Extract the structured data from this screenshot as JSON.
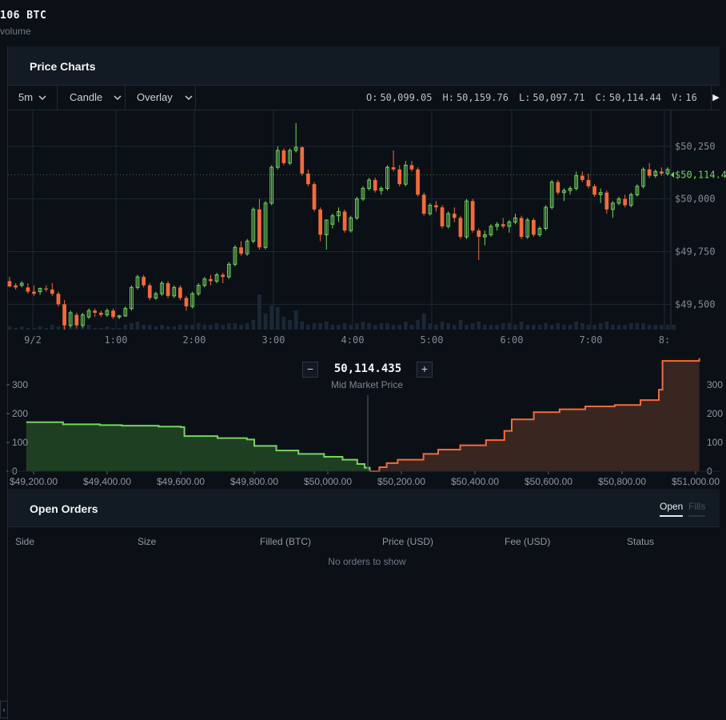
{
  "top": {
    "volume_text": "106  BTC",
    "volume_label": "volume"
  },
  "chart_panel": {
    "title": "Price Charts",
    "toolbar": {
      "interval": "5m",
      "chart_type": "Candle",
      "overlay": "Overlay",
      "ohlc": {
        "o_label": "O:",
        "o": "50,099.05",
        "h_label": "H:",
        "h": "50,159.76",
        "l_label": "L:",
        "l": "50,097.71",
        "c_label": "C:",
        "c": "50,114.44",
        "v_label": "V:",
        "v": "16"
      },
      "play_icon": "play-icon"
    }
  },
  "colors": {
    "up": "#72d55f",
    "down": "#f36a3d",
    "bid_fill": "#1f3f22",
    "ask_fill": "#3a2620",
    "bg": "#0b1016",
    "grid": "#1d2731"
  },
  "chart_data": [
    {
      "type": "candlestick",
      "interval": "5m",
      "x_tick_labels": [
        "9/2",
        "1:00",
        "2:00",
        "3:00",
        "4:00",
        "5:00",
        "6:00",
        "7:00",
        "8:"
      ],
      "y_tick_labels": [
        "$50,250",
        "$50,000",
        "$49,750",
        "$49,500"
      ],
      "ylim": [
        49380,
        50420
      ],
      "last_price_label": "$50,114.4",
      "last_price": 50114.44,
      "ohlc": [
        [
          49610,
          49630,
          49580,
          49585
        ],
        [
          49590,
          49600,
          49570,
          49580
        ],
        [
          49590,
          49610,
          49580,
          49600
        ],
        [
          49580,
          49600,
          49550,
          49560
        ],
        [
          49560,
          49590,
          49540,
          49550
        ],
        [
          49560,
          49580,
          49545,
          49575
        ],
        [
          49575,
          49590,
          49560,
          49570
        ],
        [
          49570,
          49600,
          49540,
          49550
        ],
        [
          49550,
          49560,
          49490,
          49500
        ],
        [
          49500,
          49520,
          49380,
          49400
        ],
        [
          49400,
          49470,
          49390,
          49460
        ],
        [
          49450,
          49460,
          49390,
          49400
        ],
        [
          49400,
          49460,
          49390,
          49450
        ],
        [
          49440,
          49480,
          49430,
          49470
        ],
        [
          49470,
          49480,
          49440,
          49460
        ],
        [
          49460,
          49470,
          49440,
          49450
        ],
        [
          49450,
          49480,
          49440,
          49470
        ],
        [
          49470,
          49480,
          49430,
          49440
        ],
        [
          49440,
          49450,
          49430,
          49445
        ],
        [
          49445,
          49490,
          49440,
          49480
        ],
        [
          49480,
          49590,
          49470,
          49580
        ],
        [
          49580,
          49640,
          49570,
          49630
        ],
        [
          49630,
          49640,
          49580,
          49590
        ],
        [
          49590,
          49600,
          49520,
          49530
        ],
        [
          49530,
          49560,
          49520,
          49550
        ],
        [
          49550,
          49610,
          49540,
          49600
        ],
        [
          49600,
          49610,
          49530,
          49540
        ],
        [
          49540,
          49590,
          49530,
          49580
        ],
        [
          49580,
          49590,
          49520,
          49530
        ],
        [
          49530,
          49540,
          49470,
          49490
        ],
        [
          49490,
          49560,
          49480,
          49550
        ],
        [
          49550,
          49600,
          49540,
          49590
        ],
        [
          49590,
          49630,
          49580,
          49620
        ],
        [
          49620,
          49640,
          49590,
          49610
        ],
        [
          49610,
          49650,
          49600,
          49640
        ],
        [
          49640,
          49650,
          49600,
          49630
        ],
        [
          49630,
          49700,
          49620,
          49690
        ],
        [
          49690,
          49780,
          49680,
          49770
        ],
        [
          49770,
          49800,
          49730,
          49740
        ],
        [
          49740,
          49810,
          49730,
          49800
        ],
        [
          49800,
          49960,
          49790,
          49950
        ],
        [
          49950,
          50000,
          49760,
          49770
        ],
        [
          49770,
          49990,
          49760,
          49980
        ],
        [
          49980,
          50160,
          49970,
          50150
        ],
        [
          50150,
          50250,
          50140,
          50230
        ],
        [
          50230,
          50240,
          50160,
          50170
        ],
        [
          50170,
          50240,
          50160,
          50230
        ],
        [
          50230,
          50360,
          50220,
          50245
        ],
        [
          50245,
          50250,
          50110,
          50120
        ],
        [
          50120,
          50140,
          50060,
          50070
        ],
        [
          50070,
          50080,
          49940,
          49950
        ],
        [
          49950,
          49960,
          49800,
          49830
        ],
        [
          49830,
          49900,
          49760,
          49900
        ],
        [
          49880,
          49930,
          49860,
          49920
        ],
        [
          49920,
          49960,
          49890,
          49940
        ],
        [
          49940,
          49950,
          49840,
          49850
        ],
        [
          49850,
          49920,
          49840,
          49910
        ],
        [
          49910,
          50010,
          49900,
          50000
        ],
        [
          50000,
          50060,
          49990,
          50050
        ],
        [
          50050,
          50100,
          50040,
          50090
        ],
        [
          50090,
          50100,
          50030,
          50040
        ],
        [
          50040,
          50060,
          50020,
          50050
        ],
        [
          50050,
          50160,
          50040,
          50150
        ],
        [
          50150,
          50230,
          50130,
          50140
        ],
        [
          50140,
          50160,
          50060,
          50070
        ],
        [
          50070,
          50180,
          50060,
          50160
        ],
        [
          50160,
          50180,
          50130,
          50140
        ],
        [
          50140,
          50150,
          50010,
          50020
        ],
        [
          50020,
          50030,
          49920,
          49930
        ],
        [
          49930,
          49980,
          49920,
          49970
        ],
        [
          49970,
          49990,
          49940,
          49960
        ],
        [
          49960,
          49970,
          49860,
          49870
        ],
        [
          49870,
          49940,
          49860,
          49930
        ],
        [
          49930,
          49960,
          49890,
          49910
        ],
        [
          49910,
          49920,
          49810,
          49820
        ],
        [
          49820,
          50000,
          49810,
          49990
        ],
        [
          49990,
          50000,
          49840,
          49850
        ],
        [
          49850,
          49860,
          49710,
          49820
        ],
        [
          49820,
          49850,
          49780,
          49830
        ],
        [
          49830,
          49880,
          49820,
          49870
        ],
        [
          49870,
          49890,
          49850,
          49880
        ],
        [
          49880,
          49910,
          49860,
          49870
        ],
        [
          49870,
          49900,
          49840,
          49890
        ],
        [
          49890,
          49930,
          49880,
          49910
        ],
        [
          49910,
          49920,
          49810,
          49820
        ],
        [
          49820,
          49910,
          49810,
          49900
        ],
        [
          49900,
          49910,
          49820,
          49830
        ],
        [
          49830,
          49870,
          49820,
          49860
        ],
        [
          49860,
          49970,
          49850,
          49960
        ],
        [
          49960,
          50090,
          49950,
          50080
        ],
        [
          50080,
          50090,
          50020,
          50030
        ],
        [
          50030,
          50050,
          49990,
          50040
        ],
        [
          50040,
          50060,
          50020,
          50050
        ],
        [
          50050,
          50130,
          50040,
          50110
        ],
        [
          50110,
          50130,
          50080,
          50090
        ],
        [
          50090,
          50120,
          50050,
          50060
        ],
        [
          50060,
          50070,
          50010,
          50020
        ],
        [
          50020,
          50050,
          49980,
          50030
        ],
        [
          50030,
          50040,
          49930,
          49950
        ],
        [
          49950,
          49990,
          49910,
          49980
        ],
        [
          49980,
          50010,
          49970,
          50000
        ],
        [
          50000,
          50020,
          49960,
          49970
        ],
        [
          49970,
          50030,
          49960,
          50020
        ],
        [
          50020,
          50070,
          50010,
          50060
        ],
        [
          50060,
          50150,
          50050,
          50140
        ],
        [
          50140,
          50170,
          50100,
          50110
        ],
        [
          50110,
          50140,
          50100,
          50130
        ],
        [
          50130,
          50150,
          50110,
          50120
        ],
        [
          50120,
          50150,
          50110,
          50140
        ]
      ],
      "volume": [
        2,
        1,
        2,
        1,
        1,
        2,
        1,
        3,
        2,
        6,
        3,
        2,
        2,
        3,
        1,
        1,
        2,
        1,
        1,
        3,
        4,
        5,
        3,
        3,
        2,
        3,
        2,
        2,
        3,
        3,
        3,
        4,
        3,
        3,
        4,
        3,
        4,
        4,
        3,
        4,
        6,
        22,
        10,
        15,
        14,
        8,
        6,
        12,
        5,
        3,
        4,
        4,
        5,
        3,
        3,
        4,
        3,
        4,
        5,
        4,
        3,
        4,
        4,
        3,
        3,
        5,
        3,
        6,
        10,
        4,
        3,
        5,
        4,
        3,
        6,
        3,
        4,
        5,
        3,
        3,
        3,
        4,
        4,
        3,
        5,
        3,
        3,
        3,
        4,
        3,
        4,
        3,
        3,
        5,
        4,
        3,
        3,
        4,
        5,
        3,
        3,
        3,
        4,
        4,
        4,
        3,
        3,
        3,
        3,
        3
      ]
    },
    {
      "type": "area",
      "title": "Mid Market Price",
      "mid_price": "50,114.435",
      "x_tick_labels": [
        "$49,200.00",
        "$49,400.00",
        "$49,600.00",
        "$49,800.00",
        "$50,000.00",
        "$50,200.00",
        "$50,400.00",
        "$50,600.00",
        "$50,800.00",
        "$51,000.00"
      ],
      "y_tick_labels": [
        "300",
        "200",
        "100",
        "0"
      ],
      "xlim": [
        49200,
        51000
      ],
      "ylim": [
        0,
        400
      ],
      "series": [
        {
          "side": "bid",
          "x": [
            49180,
            49280,
            49380,
            49440,
            49540,
            49600,
            49610,
            49700,
            49780,
            49800,
            49860,
            49920,
            49990,
            50040,
            50080,
            50100,
            50114
          ],
          "y": [
            170,
            163,
            160,
            158,
            155,
            153,
            122,
            115,
            110,
            88,
            72,
            60,
            50,
            40,
            25,
            12,
            0
          ]
        },
        {
          "side": "ask",
          "x": [
            50114,
            50140,
            50160,
            50190,
            50260,
            50300,
            50360,
            50430,
            50480,
            50500,
            50560,
            50630,
            50700,
            50780,
            50850,
            50900,
            50910,
            51010
          ],
          "y": [
            0,
            14,
            28,
            40,
            60,
            75,
            90,
            108,
            140,
            180,
            205,
            215,
            225,
            230,
            247,
            283,
            383,
            392
          ]
        }
      ]
    }
  ],
  "mid_market": {
    "value": "50,114.435",
    "label": "Mid Market Price",
    "minus": "−",
    "plus": "+"
  },
  "orders": {
    "title": "Open Orders",
    "tabs": [
      "Open",
      "Fills"
    ],
    "columns": [
      "Side",
      "Size",
      "Filled (BTC)",
      "Price (USD)",
      "Fee (USD)",
      "Status"
    ],
    "empty_text": "No orders to show"
  },
  "rail": {
    "arrow_icon": "chevron-right-icon"
  }
}
